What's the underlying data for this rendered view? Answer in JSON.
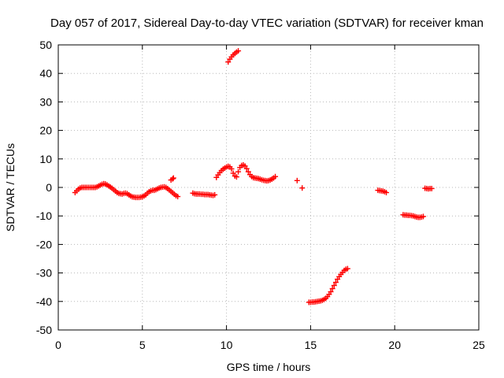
{
  "chart_data": {
    "type": "scatter",
    "title": "Day 057 of 2017, Sidereal Day-to-day VTEC variation (SDTVAR) for receiver kman",
    "xlabel": "GPS time / hours",
    "ylabel": "SDTVAR / TECUs",
    "xlim": [
      0,
      25
    ],
    "ylim": [
      -50,
      50
    ],
    "xticks": [
      0,
      5,
      10,
      15,
      20,
      25
    ],
    "yticks": [
      -50,
      -40,
      -30,
      -20,
      -10,
      0,
      10,
      20,
      30,
      40,
      50
    ],
    "grid": true,
    "marker": "plus",
    "color": "#ff0000",
    "series": [
      {
        "name": "kman",
        "x": [
          1.0,
          1.1,
          1.2,
          1.3,
          1.4,
          1.5,
          1.6,
          1.7,
          1.8,
          1.9,
          2.0,
          2.1,
          2.2,
          2.3,
          2.4,
          2.5,
          2.6,
          2.7,
          2.8,
          2.9,
          3.0,
          3.1,
          3.2,
          3.3,
          3.4,
          3.5,
          3.6,
          3.7,
          3.8,
          3.9,
          4.0,
          4.1,
          4.2,
          4.3,
          4.4,
          4.5,
          4.6,
          4.7,
          4.8,
          4.9,
          5.0,
          5.1,
          5.2,
          5.3,
          5.4,
          5.5,
          5.6,
          5.7,
          5.8,
          5.9,
          6.0,
          6.1,
          6.2,
          6.3,
          6.4,
          6.5,
          6.6,
          6.7,
          6.8,
          6.9,
          7.0,
          7.1,
          6.7,
          6.8,
          6.85,
          8.0,
          8.1,
          8.2,
          8.3,
          8.4,
          8.5,
          8.6,
          8.7,
          8.8,
          8.9,
          9.0,
          9.1,
          9.2,
          9.3,
          9.4,
          9.5,
          9.6,
          9.7,
          9.8,
          9.9,
          10.0,
          10.1,
          10.2,
          10.3,
          10.4,
          10.5,
          10.6,
          10.7,
          10.8,
          10.9,
          11.0,
          11.1,
          11.2,
          11.3,
          11.4,
          11.5,
          11.6,
          11.7,
          11.8,
          11.9,
          12.0,
          12.1,
          12.2,
          12.3,
          12.4,
          12.5,
          12.6,
          12.7,
          12.8,
          12.9,
          10.1,
          10.2,
          10.3,
          10.4,
          10.5,
          10.6,
          10.7,
          14.2,
          14.5,
          14.9,
          15.0,
          15.1,
          15.2,
          15.3,
          15.4,
          15.5,
          15.6,
          15.7,
          15.8,
          15.9,
          16.0,
          16.1,
          16.2,
          16.3,
          16.4,
          16.5,
          16.6,
          16.7,
          16.8,
          16.9,
          17.0,
          17.1,
          17.2,
          19.0,
          19.1,
          19.2,
          19.3,
          19.4,
          19.5,
          20.5,
          20.6,
          20.7,
          20.8,
          20.9,
          21.0,
          21.1,
          21.2,
          21.3,
          21.4,
          21.5,
          21.6,
          21.7,
          21.8,
          21.9,
          22.0,
          22.1,
          22.2
        ],
        "y": [
          -1.8,
          -1.2,
          -0.6,
          -0.2,
          0.0,
          0.0,
          0.0,
          0.0,
          0.0,
          0.0,
          0.0,
          0.0,
          0.0,
          0.2,
          0.5,
          0.8,
          1.1,
          1.3,
          1.2,
          0.9,
          0.5,
          0.1,
          -0.3,
          -0.8,
          -1.3,
          -1.8,
          -2.1,
          -2.2,
          -2.3,
          -2.1,
          -2.0,
          -2.2,
          -2.6,
          -3.0,
          -3.3,
          -3.4,
          -3.5,
          -3.5,
          -3.5,
          -3.4,
          -3.3,
          -3.0,
          -2.6,
          -2.0,
          -1.5,
          -1.2,
          -1.0,
          -1.0,
          -0.8,
          -0.5,
          -0.2,
          0.0,
          0.1,
          0.2,
          0.0,
          -0.4,
          -0.9,
          -1.4,
          -1.9,
          -2.4,
          -2.9,
          -3.2,
          2.6,
          3.0,
          3.3,
          -2.0,
          -2.2,
          -2.3,
          -2.3,
          -2.3,
          -2.4,
          -2.4,
          -2.5,
          -2.5,
          -2.5,
          -2.6,
          -2.7,
          -2.8,
          -2.6,
          3.5,
          4.4,
          5.2,
          5.9,
          6.4,
          6.8,
          7.2,
          7.4,
          7.2,
          6.5,
          5.0,
          4.0,
          3.7,
          5.5,
          7.0,
          7.7,
          7.9,
          7.5,
          6.6,
          5.5,
          4.5,
          3.8,
          3.4,
          3.3,
          3.2,
          3.1,
          2.9,
          2.7,
          2.5,
          2.4,
          2.3,
          2.4,
          2.6,
          2.9,
          3.3,
          3.8,
          44.0,
          45.0,
          45.8,
          46.5,
          47.0,
          47.5,
          47.9,
          2.4,
          -0.2,
          -40.3,
          -40.3,
          -40.2,
          -40.2,
          -40.1,
          -40.0,
          -39.9,
          -39.8,
          -39.6,
          -39.3,
          -38.9,
          -38.3,
          -37.5,
          -36.6,
          -35.5,
          -34.4,
          -33.3,
          -32.2,
          -31.3,
          -30.5,
          -29.8,
          -29.1,
          -28.7,
          -28.5,
          -1.0,
          -1.1,
          -1.2,
          -1.3,
          -1.5,
          -1.8,
          -9.6,
          -9.7,
          -9.7,
          -9.8,
          -9.8,
          -9.9,
          -10.0,
          -10.2,
          -10.4,
          -10.5,
          -10.5,
          -10.4,
          -10.2,
          -0.3,
          -0.4,
          -0.5,
          -0.4,
          -0.4
        ]
      }
    ]
  }
}
